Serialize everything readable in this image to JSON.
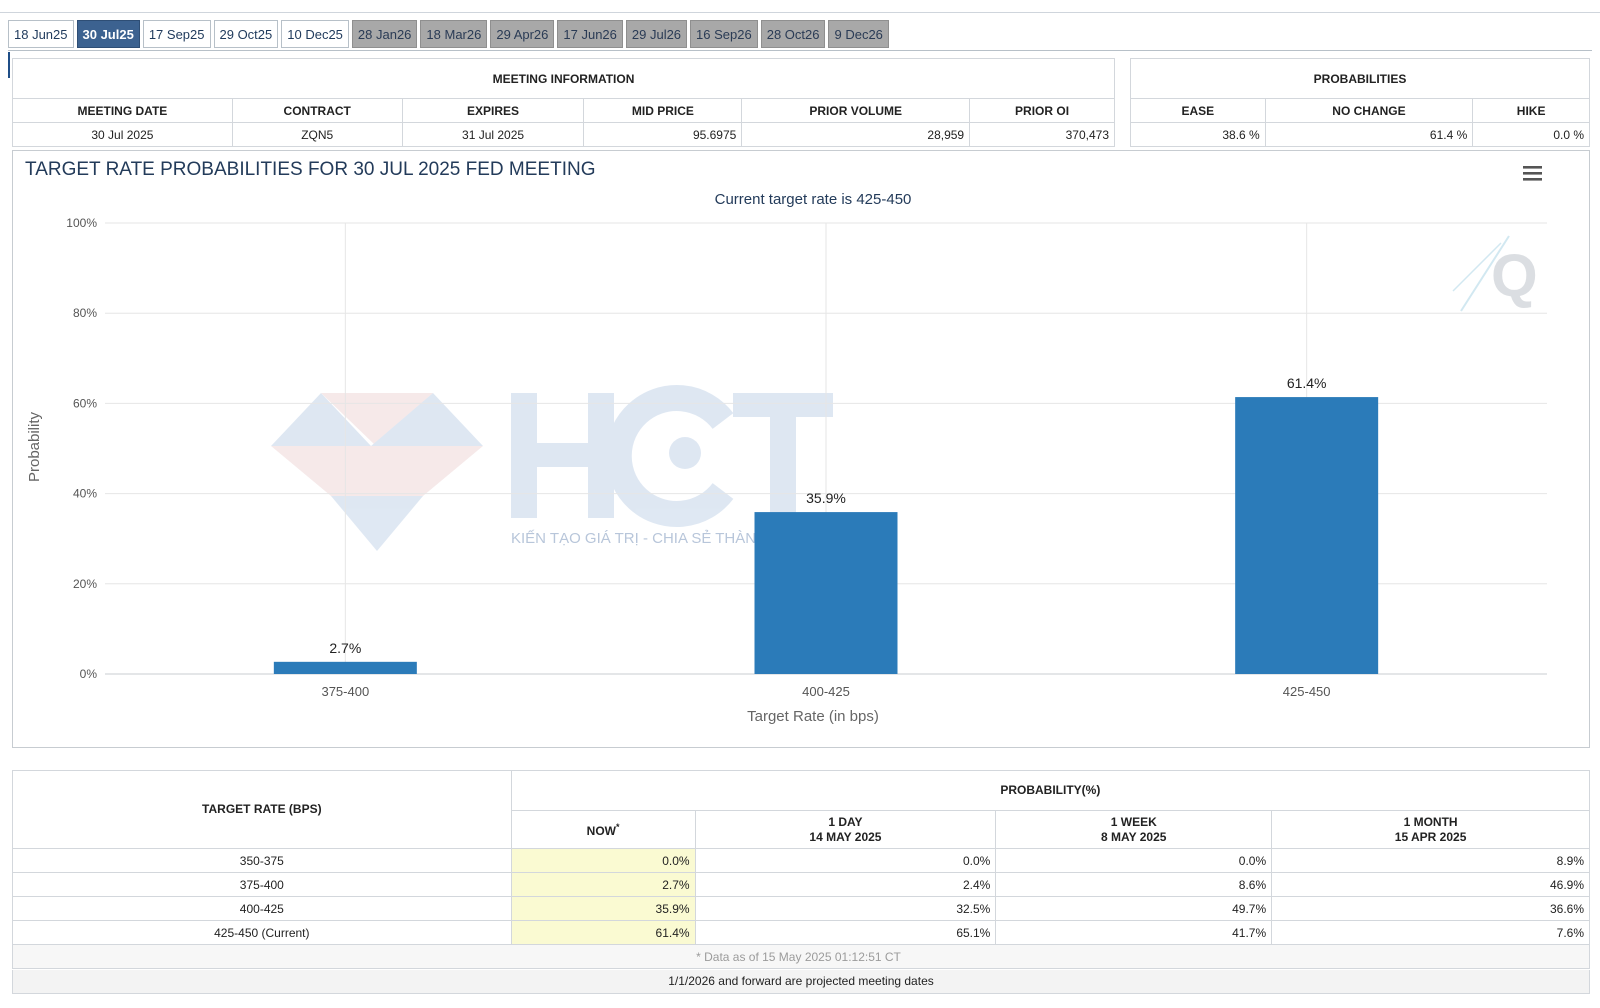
{
  "tabs": [
    {
      "label": "18 Jun25",
      "state": "past"
    },
    {
      "label": "30 Jul25",
      "state": "active"
    },
    {
      "label": "17 Sep25",
      "state": "past"
    },
    {
      "label": "29 Oct25",
      "state": "past"
    },
    {
      "label": "10 Dec25",
      "state": "past"
    },
    {
      "label": "28 Jan26",
      "state": "future"
    },
    {
      "label": "18 Mar26",
      "state": "future"
    },
    {
      "label": "29 Apr26",
      "state": "future"
    },
    {
      "label": "17 Jun26",
      "state": "future"
    },
    {
      "label": "29 Jul26",
      "state": "future"
    },
    {
      "label": "16 Sep26",
      "state": "future"
    },
    {
      "label": "28 Oct26",
      "state": "future"
    },
    {
      "label": "9 Dec26",
      "state": "future"
    }
  ],
  "meeting_info": {
    "title": "MEETING INFORMATION",
    "headers": [
      "MEETING DATE",
      "CONTRACT",
      "EXPIRES",
      "MID PRICE",
      "PRIOR VOLUME",
      "PRIOR OI"
    ],
    "values": [
      "30 Jul 2025",
      "ZQN5",
      "31 Jul 2025",
      "95.6975",
      "28,959",
      "370,473"
    ]
  },
  "probabilities": {
    "title": "PROBABILITIES",
    "headers": [
      "EASE",
      "NO CHANGE",
      "HIKE"
    ],
    "values": [
      "38.6 %",
      "61.4 %",
      "0.0 %"
    ]
  },
  "chart_data": {
    "type": "bar",
    "title": "TARGET RATE PROBABILITIES FOR 30 JUL 2025 FED MEETING",
    "subtitle": "Current target rate is 425-450",
    "xlabel": "Target Rate (in bps)",
    "ylabel": "Probability",
    "categories": [
      "375-400",
      "400-425",
      "425-450"
    ],
    "values": [
      2.7,
      35.9,
      61.4
    ],
    "data_labels": [
      "2.7%",
      "35.9%",
      "61.4%"
    ],
    "ylim": [
      0,
      100
    ],
    "yticks": [
      "0%",
      "20%",
      "40%",
      "60%",
      "80%",
      "100%"
    ],
    "ytick_values": [
      0,
      20,
      40,
      60,
      80,
      100
    ],
    "grid": true,
    "bar_color": "#2b7bb9",
    "watermark_text": "KIẾN TẠO GIÁ TRỊ - CHIA SẺ THÀNH CÔNG"
  },
  "menu_icon": "hamburger-menu-icon",
  "prob_table": {
    "rate_header": "TARGET RATE (BPS)",
    "group_header": "PROBABILITY(%)",
    "now_label": "NOW",
    "now_mark": "*",
    "col_headers": [
      {
        "line1": "1 DAY",
        "line2": "14 MAY 2025"
      },
      {
        "line1": "1 WEEK",
        "line2": "8 MAY 2025"
      },
      {
        "line1": "1 MONTH",
        "line2": "15 APR 2025"
      }
    ],
    "rows": [
      {
        "rate": "350-375",
        "now": "0.0%",
        "day": "0.0%",
        "week": "0.0%",
        "month": "8.9%"
      },
      {
        "rate": "375-400",
        "now": "2.7%",
        "day": "2.4%",
        "week": "8.6%",
        "month": "46.9%"
      },
      {
        "rate": "400-425",
        "now": "35.9%",
        "day": "32.5%",
        "week": "49.7%",
        "month": "36.6%"
      },
      {
        "rate": "425-450 (Current)",
        "now": "61.4%",
        "day": "65.1%",
        "week": "41.7%",
        "month": "7.6%"
      }
    ],
    "note": "* Data as of 15 May 2025 01:12:51 CT"
  },
  "footer": "1/1/2026 and forward are projected meeting dates"
}
